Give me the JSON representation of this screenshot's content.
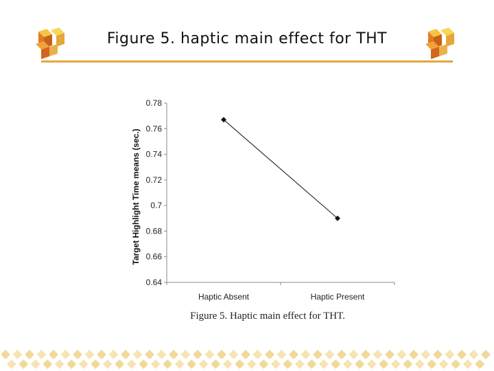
{
  "slide": {
    "title": "Figure 5. haptic main effect for THT",
    "accent_color": "#e4a73b",
    "decorations": [
      "cube-logo-icon",
      "cube-logo-icon"
    ]
  },
  "chart_data": {
    "type": "line",
    "categories": [
      "Haptic Absent",
      "Haptic Present"
    ],
    "series": [
      {
        "values": [
          0.767,
          0.69
        ]
      }
    ],
    "ylabel": "Target Highlight Time means (sec.)",
    "xlabel": "",
    "ylim": [
      0.64,
      0.78
    ],
    "yticks": [
      "0.78",
      "0.76",
      "0.74",
      "0.72",
      "0.7",
      "0.68",
      "0.66",
      "0.64"
    ],
    "grid": false,
    "caption": "Figure 5.   Haptic main effect for THT."
  }
}
